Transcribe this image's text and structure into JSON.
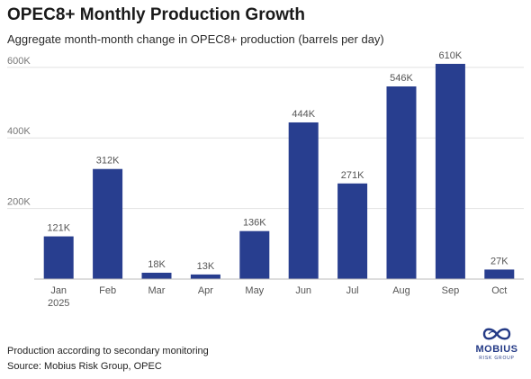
{
  "header": {
    "title": "OPEC8+ Monthly Production Growth",
    "subtitle": "Aggregate month-month change in OPEC8+ production (barrels per day)"
  },
  "footer": {
    "note": "Production according to secondary monitoring",
    "source": "Source: Mobius Risk Group, OPEC"
  },
  "logo": {
    "word": "MOBIUS",
    "sub": "RISK GROUP",
    "icon": "infinity-loop-icon",
    "color": "#243a86"
  },
  "chart_data": {
    "type": "bar",
    "title": "OPEC8+ Monthly Production Growth",
    "subtitle": "Aggregate month-month change in OPEC8+ production (barrels per day)",
    "categories": [
      "Jan",
      "Feb",
      "Mar",
      "Apr",
      "May",
      "Jun",
      "Jul",
      "Aug",
      "Sep",
      "Oct"
    ],
    "category_sublabels": [
      "2025",
      "",
      "",
      "",
      "",
      "",
      "",
      "",
      "",
      ""
    ],
    "values": [
      121000,
      312000,
      18000,
      13000,
      136000,
      444000,
      271000,
      546000,
      610000,
      27000
    ],
    "data_labels": [
      "121K",
      "312K",
      "18K",
      "13K",
      "136K",
      "444K",
      "271K",
      "546K",
      "610K",
      "27K"
    ],
    "yticks": [
      200000,
      400000,
      600000
    ],
    "ytick_labels": [
      "200K",
      "400K",
      "600K"
    ],
    "ylim": [
      0,
      620000
    ],
    "grid": true,
    "bar_color": "#283e8f",
    "grid_color": "#e2e2e2",
    "xlabel": "",
    "ylabel": ""
  }
}
